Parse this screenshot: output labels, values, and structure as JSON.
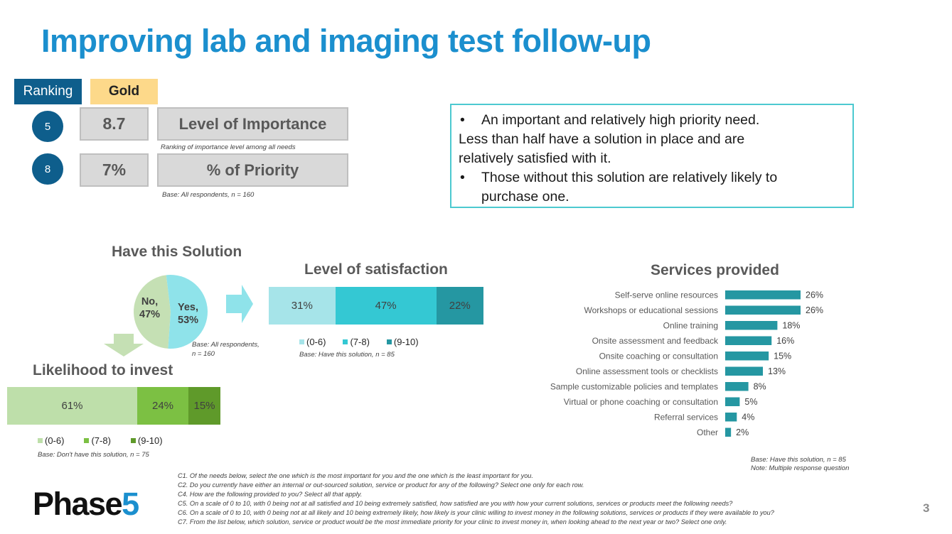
{
  "title": "Improving lab and imaging test follow-up",
  "ranking_label": "Ranking",
  "gold_label": "Gold",
  "importance": {
    "rank": "5",
    "score": "8.7",
    "label": "Level of Importance",
    "note": "Ranking of importance level among all needs"
  },
  "priority": {
    "rank": "8",
    "score": "7%",
    "label": "% of Priority",
    "note": "Base: All respondents,  n = 160"
  },
  "callout": {
    "bullet1_line1": "An important and relatively high priority need.",
    "bullet1_rest_line1": "Less than half have a solution in place and are",
    "bullet1_rest_line2": "relatively satisfied with it.",
    "bullet2_line1": "Those without this solution are relatively likely to",
    "bullet2_line2": "purchase one.",
    "bullet_char": "•"
  },
  "have_solution": {
    "title": "Have this Solution",
    "no_label": "No,",
    "no_value": "47%",
    "yes_label": "Yes,",
    "yes_value": "53%",
    "base_line1": "Base: All respondents,",
    "base_line2": "n = 160",
    "colors": {
      "no": "#c5e0b4",
      "yes": "#8fe3ea"
    }
  },
  "satisfaction": {
    "title": "Level of satisfaction",
    "base": "Base: Have this solution, n = 85",
    "legend": [
      "(0-6)",
      "(7-8)",
      "(9-10)"
    ]
  },
  "likelihood": {
    "title": "Likelihood to invest",
    "base": "Base: Don't have this solution, n = 75",
    "legend": [
      "(0-6)",
      "(7-8)",
      "(9-10)"
    ]
  },
  "services": {
    "title": "Services provided",
    "base_line1": "Base: Have this solution, n = 85",
    "base_line2": "Note:  Multiple response question"
  },
  "chart_data": [
    {
      "type": "pie",
      "title": "Have this Solution",
      "categories": [
        "No",
        "Yes"
      ],
      "values": [
        47,
        53
      ],
      "colors": [
        "#c5e0b4",
        "#8fe3ea"
      ]
    },
    {
      "type": "bar",
      "orientation": "horizontal-stacked",
      "title": "Level of satisfaction",
      "series": [
        {
          "name": "(0-6)",
          "values": [
            31
          ],
          "label": "31%",
          "color": "#a6e4e9"
        },
        {
          "name": "(7-8)",
          "values": [
            47
          ],
          "label": "47%",
          "color": "#34c8d3"
        },
        {
          "name": "(9-10)",
          "values": [
            22
          ],
          "label": "22%",
          "color": "#2597a2"
        }
      ]
    },
    {
      "type": "bar",
      "orientation": "horizontal-stacked",
      "title": "Likelihood to invest",
      "series": [
        {
          "name": "(0-6)",
          "values": [
            61
          ],
          "label": "61%",
          "color": "#bedfaa"
        },
        {
          "name": "(7-8)",
          "values": [
            24
          ],
          "label": "24%",
          "color": "#7cc043"
        },
        {
          "name": "(9-10)",
          "values": [
            15
          ],
          "label": "15%",
          "color": "#5f9a2a"
        }
      ]
    },
    {
      "type": "bar",
      "orientation": "horizontal",
      "title": "Services provided",
      "categories": [
        "Self-serve online resources",
        "Workshops or educational sessions",
        "Online training",
        "Onsite assessment and feedback",
        "Onsite coaching or consultation",
        "Online assessment tools or checklists",
        "Sample customizable policies and templates",
        "Virtual or phone coaching or consultation",
        "Referral services",
        "Other"
      ],
      "values": [
        26,
        26,
        18,
        16,
        15,
        13,
        8,
        5,
        4,
        2
      ],
      "labels": [
        "26%",
        "26%",
        "18%",
        "16%",
        "15%",
        "13%",
        "8%",
        "5%",
        "4%",
        "2%"
      ],
      "color": "#2597a2",
      "xlim": [
        0,
        26
      ]
    }
  ],
  "footnotes": [
    "C1.  Of the needs below,  select the one which  is the most important for you and the one which  is the least important  for you.",
    "C2.  Do you currently  have either an internal or out-sourced  solution, service or product for any of the following?  Select one only for each row.",
    "C4.  How are the following provided  to you?  Select all that apply.",
    "C5.  On a scale of 0 to 10, with 0 being not at all satisfied and 10 being extremely satisfied, how satisfied are you with how your current solutions, services or products meet the following  needs?",
    "C6.  On a scale of 0 to 10, with 0 being not at all likely and 10 being extremely  likely, how likely is your clinic willing  to invest money in the following  solutions, services or products if they were available to you?",
    "C7.  From the list below, which solution,  service or product would  be the most immediate priority  for your clinic to invest money in, when  looking ahead to the next year or two?  Select one only."
  ],
  "logo": {
    "text": "Phase",
    "digit": "5"
  },
  "page_number": "3"
}
